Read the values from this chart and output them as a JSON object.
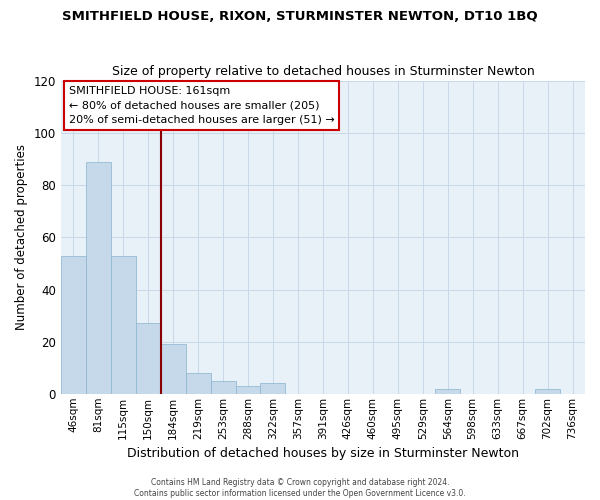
{
  "title": "SMITHFIELD HOUSE, RIXON, STURMINSTER NEWTON, DT10 1BQ",
  "subtitle": "Size of property relative to detached houses in Sturminster Newton",
  "xlabel": "Distribution of detached houses by size in Sturminster Newton",
  "ylabel": "Number of detached properties",
  "bar_labels": [
    "46sqm",
    "81sqm",
    "115sqm",
    "150sqm",
    "184sqm",
    "219sqm",
    "253sqm",
    "288sqm",
    "322sqm",
    "357sqm",
    "391sqm",
    "426sqm",
    "460sqm",
    "495sqm",
    "529sqm",
    "564sqm",
    "598sqm",
    "633sqm",
    "667sqm",
    "702sqm",
    "736sqm"
  ],
  "bar_values": [
    53,
    89,
    53,
    27,
    19,
    8,
    5,
    3,
    4,
    0,
    0,
    0,
    0,
    0,
    0,
    2,
    0,
    0,
    0,
    2,
    0
  ],
  "bar_color": "#c5d9ea",
  "bar_edge_color": "#89b4d0",
  "ylim": [
    0,
    120
  ],
  "yticks": [
    0,
    20,
    40,
    60,
    80,
    100,
    120
  ],
  "vline_color": "#8b0000",
  "annotation_title": "SMITHFIELD HOUSE: 161sqm",
  "annotation_line1": "← 80% of detached houses are smaller (205)",
  "annotation_line2": "20% of semi-detached houses are larger (51) →",
  "annotation_box_color": "#ffffff",
  "annotation_box_edge": "#cc0000",
  "footer1": "Contains HM Land Registry data © Crown copyright and database right 2024.",
  "footer2": "Contains public sector information licensed under the Open Government Licence v3.0.",
  "background_color": "#ffffff",
  "grid_color": "#c8d8e8"
}
